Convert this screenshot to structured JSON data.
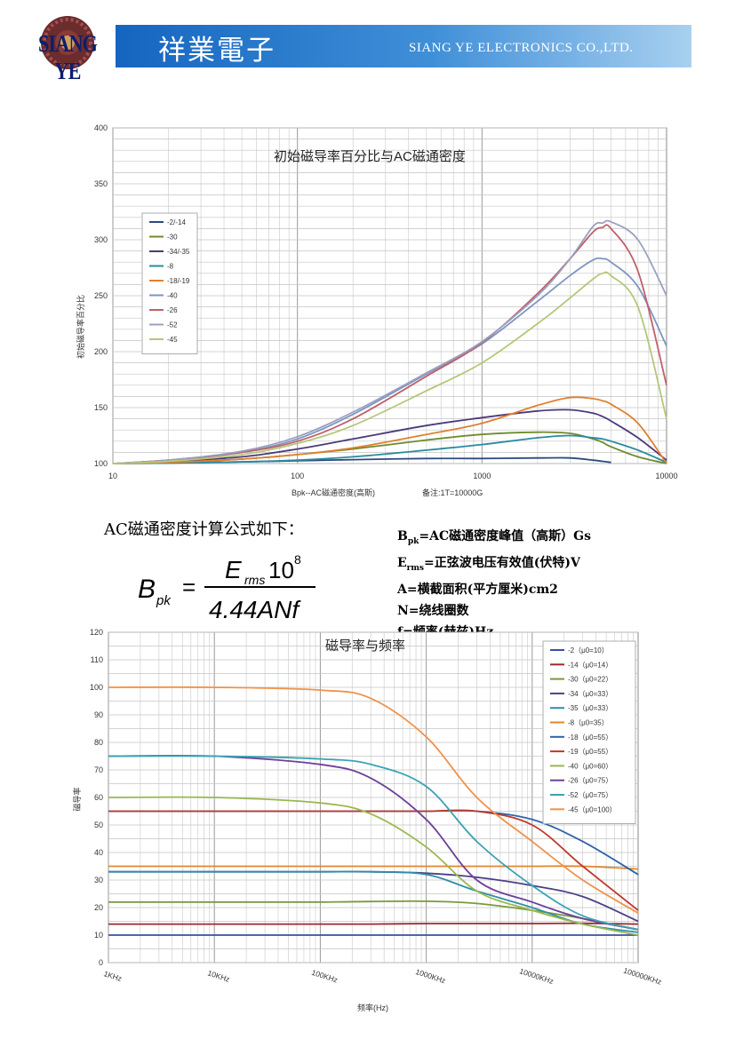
{
  "header": {
    "brand_cn": "祥業電子",
    "brand_en": "SIANG YE ELECTRONICS CO.,LTD.",
    "logo_text": "SIANG YE"
  },
  "formula_section": {
    "title": "AC磁通密度计算公式如下：",
    "lhs_main": "B",
    "lhs_sub": "pk",
    "numerator_main": "E",
    "numerator_sub": "rms",
    "numerator_tail": "10",
    "numerator_exp": "8",
    "denominator": "4.44ANf",
    "defs": [
      {
        "sym": "B",
        "sub": "pk",
        "text": "=AC磁通密度峰值（高斯）Gs"
      },
      {
        "sym": "E",
        "sub": "rms",
        "text": "=正弦波电压有效值(伏特)V"
      },
      {
        "sym": "",
        "sub": "",
        "text": "A=横截面积(平方厘米)cm2"
      },
      {
        "sym": "",
        "sub": "",
        "text": "N=绕线圈数"
      },
      {
        "sym": "",
        "sub": "",
        "text": "f=频率(赫兹)Hz"
      }
    ]
  },
  "chart_data": [
    {
      "type": "line",
      "title": "初始磁导率百分比与AC磁通密度",
      "xlabel": "Bpk--AC磁通密度(高斯)",
      "x_note": "备注:1T=10000G",
      "ylabel": "初始磁导率百分比",
      "x_scale": "log",
      "xlim": [
        10,
        10000
      ],
      "ylim": [
        100,
        400
      ],
      "x_ticks": [
        "10",
        "100",
        "1000",
        "10000"
      ],
      "y_ticks": [
        "100",
        "150",
        "200",
        "250",
        "300",
        "350",
        "400"
      ],
      "grid": true,
      "legend": "top-left",
      "x": [
        10,
        20,
        50,
        100,
        200,
        500,
        1000,
        2000,
        3000,
        4000,
        4500,
        5000,
        7000,
        10000
      ],
      "series": [
        {
          "name": "-2/-14",
          "color": "#2c4a7e",
          "values": [
            100,
            100.5,
            101.5,
            102.5,
            103.5,
            104.5,
            104.5,
            105,
            105,
            103,
            102,
            101,
            null,
            null
          ]
        },
        {
          "name": "-30",
          "color": "#6f8b2f",
          "values": [
            100,
            101,
            104,
            108,
            113,
            121,
            126,
            128,
            127,
            122,
            119,
            115,
            106,
            99
          ]
        },
        {
          "name": "-34/-35",
          "color": "#4b3a7a",
          "values": [
            100,
            102,
            106,
            113,
            122,
            134,
            141,
            147,
            148,
            145,
            142,
            138,
            123,
            103
          ]
        },
        {
          "name": "-8",
          "color": "#2a8aa0",
          "values": [
            100,
            100.5,
            101.5,
            103,
            106,
            112,
            117,
            123,
            125,
            123,
            122,
            120,
            112,
            101
          ]
        },
        {
          "name": "-18/-19",
          "color": "#e08030",
          "values": [
            100,
            101,
            104,
            108,
            114,
            126,
            136,
            152,
            159,
            158,
            156,
            153,
            136,
            100
          ]
        },
        {
          "name": "-40",
          "color": "#7d96c0",
          "values": [
            100,
            103,
            110,
            122,
            144,
            180,
            207,
            245,
            268,
            282,
            283,
            280,
            258,
            205
          ]
        },
        {
          "name": "-26",
          "color": "#c0606a",
          "values": [
            100,
            103,
            110,
            120,
            140,
            178,
            208,
            252,
            283,
            307,
            311,
            310,
            272,
            170
          ]
        },
        {
          "name": "-52",
          "color": "#9aa0c0",
          "values": [
            100,
            103,
            111,
            124,
            146,
            181,
            209,
            250,
            283,
            312,
            315,
            316,
            300,
            250
          ]
        },
        {
          "name": "-45",
          "color": "#b3c878",
          "values": [
            100,
            102,
            108,
            118,
            134,
            165,
            190,
            225,
            248,
            265,
            270,
            268,
            240,
            140
          ]
        }
      ]
    },
    {
      "type": "line",
      "title": "磁导率与频率",
      "xlabel": "频率(Hz)",
      "ylabel": "磁导率",
      "x_scale": "log",
      "xlim": [
        1000,
        100000000
      ],
      "ylim": [
        0,
        120
      ],
      "x_ticks": [
        "1KHz",
        "10KHz",
        "100KHz",
        "1000KHz",
        "10000KHz",
        "100000KHz"
      ],
      "y_ticks": [
        "0",
        "10",
        "20",
        "30",
        "40",
        "50",
        "60",
        "70",
        "80",
        "90",
        "100",
        "110",
        "120"
      ],
      "grid": true,
      "legend": "top-right",
      "x": [
        1000,
        10000,
        100000,
        300000,
        1000000,
        3000000,
        10000000,
        30000000,
        100000000
      ],
      "series": [
        {
          "name": "-2（μ0=10）",
          "color": "#3a4fa0",
          "values": [
            10,
            10,
            10,
            10,
            10,
            10,
            10,
            10,
            10
          ]
        },
        {
          "name": "-14（μ0=14）",
          "color": "#9b2a2a",
          "values": [
            14,
            14,
            14,
            14,
            14.2,
            14.2,
            14.2,
            14.3,
            14
          ]
        },
        {
          "name": "-30（μ0=22）",
          "color": "#7a9a3a",
          "values": [
            22,
            22,
            22,
            22.2,
            22.3,
            21.5,
            19,
            16,
            12
          ]
        },
        {
          "name": "-34（μ0=33）",
          "color": "#4b3f86",
          "values": [
            33,
            33,
            33,
            33,
            32.5,
            31,
            28,
            24,
            15
          ]
        },
        {
          "name": "-35（μ0=33）",
          "color": "#2f8fa8",
          "values": [
            33,
            33,
            33,
            33,
            32,
            26,
            20,
            14,
            11
          ]
        },
        {
          "name": "-8（μ0=35）",
          "color": "#e2872e",
          "values": [
            35,
            35,
            35,
            35,
            35,
            35,
            35,
            35,
            34
          ]
        },
        {
          "name": "-18（μ0=55）",
          "color": "#2f62a8",
          "values": [
            55,
            55,
            55,
            55,
            55,
            55,
            52,
            44,
            32
          ]
        },
        {
          "name": "-19（μ0=55）",
          "color": "#c0392b",
          "values": [
            55,
            55,
            55,
            55,
            55,
            55,
            50,
            35,
            19
          ]
        },
        {
          "name": "-40（μ0=60）",
          "color": "#9ab84e",
          "values": [
            60,
            60,
            58,
            54,
            42,
            26,
            19,
            14,
            10
          ]
        },
        {
          "name": "-26（μ0=75）",
          "color": "#6d3f9a",
          "values": [
            75,
            75,
            72,
            67,
            52,
            30,
            22,
            16,
            12
          ]
        },
        {
          "name": "-52（μ0=75）",
          "color": "#3aa3b5",
          "values": [
            75,
            75,
            74,
            72,
            64,
            44,
            28,
            17,
            12
          ]
        },
        {
          "name": "-45（μ0=100）",
          "color": "#f0924a",
          "values": [
            100,
            100,
            99,
            96,
            82,
            60,
            44,
            30,
            18
          ]
        }
      ]
    }
  ]
}
